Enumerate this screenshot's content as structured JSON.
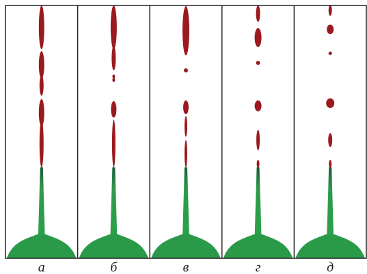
{
  "panels": [
    {
      "label": "а"
    },
    {
      "label": "б"
    },
    {
      "label": "в"
    },
    {
      "label": "г"
    },
    {
      "label": "д"
    }
  ]
}
